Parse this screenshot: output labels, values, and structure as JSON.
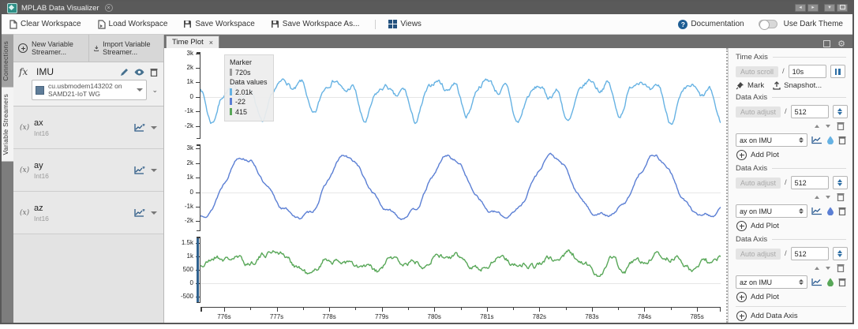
{
  "window": {
    "title": "MPLAB Data Visualizer"
  },
  "toolbar": {
    "clear": "Clear Workspace",
    "load": "Load Workspace",
    "save": "Save Workspace",
    "save_as": "Save Workspace As...",
    "views": "Views",
    "documentation": "Documentation",
    "dark_theme": "Use Dark Theme"
  },
  "sidebar": {
    "tabs": [
      {
        "label": "Connections"
      },
      {
        "label": "Variable Streamers"
      }
    ],
    "new_streamer": "New Variable Streamer...",
    "import_streamer": "Import Variable Streamer...",
    "streamer": {
      "name": "IMU",
      "source": "cu.usbmodem143202 on SAMD21-IoT WG"
    },
    "variables": [
      {
        "name": "ax",
        "type": "Int16"
      },
      {
        "name": "ay",
        "type": "Int16"
      },
      {
        "name": "az",
        "type": "Int16"
      }
    ]
  },
  "plot_panel": {
    "tab": "Time Plot"
  },
  "ui": {
    "separator": "/"
  },
  "settings": {
    "time_axis": {
      "title": "Time Axis",
      "auto_label": "Auto scroll",
      "value": "10s",
      "mark": "Mark",
      "snapshot": "Snapshot..."
    },
    "data_axes": [
      {
        "title": "Data Axis",
        "auto_label": "Auto adjust",
        "value": "512",
        "plot_label": "ax on IMU",
        "add_plot": "Add Plot"
      },
      {
        "title": "Data Axis",
        "auto_label": "Auto adjust",
        "value": "512",
        "plot_label": "ay on IMU",
        "add_plot": "Add Plot"
      },
      {
        "title": "Data Axis",
        "auto_label": "Auto adjust",
        "value": "512",
        "plot_label": "az on IMU",
        "add_plot": "Add Plot"
      }
    ],
    "add_data_axis": "Add Data Axis"
  },
  "chart_data": {
    "type": "line",
    "x_range_s": [
      775.55,
      785.45
    ],
    "x_major_ticks": [
      {
        "label": "776s",
        "t": 776
      },
      {
        "label": "777s",
        "t": 777
      },
      {
        "label": "778s",
        "t": 778
      },
      {
        "label": "779s",
        "t": 779
      },
      {
        "label": "780s",
        "t": 780
      },
      {
        "label": "781s",
        "t": 781
      },
      {
        "label": "782s",
        "t": 782
      },
      {
        "label": "783s",
        "t": 783
      },
      {
        "label": "784s",
        "t": 784
      },
      {
        "label": "785s",
        "t": 785
      }
    ],
    "grid": "zero-line-only",
    "legend_position": "top-left",
    "legend_title": "Data values",
    "marker": {
      "label": "Marker",
      "time": "720s",
      "color": "#9a9a9a"
    },
    "plots": [
      {
        "id": "ax",
        "name": "ax on IMU",
        "color": "#66b2e3",
        "current_value": "2.01k",
        "ylim": [
          -3000,
          3200
        ],
        "y_ticks": [
          {
            "label": "3k",
            "v": 3000
          },
          {
            "label": "2k",
            "v": 2000
          },
          {
            "label": "1k",
            "v": 1000
          },
          {
            "label": "0",
            "v": 0
          },
          {
            "label": "-1k",
            "v": -1000
          },
          {
            "label": "-2k",
            "v": -2000
          }
        ],
        "selected": false,
        "synth": {
          "seed": 7,
          "baseline": 100,
          "noise": 260,
          "components": [
            {
              "p": 0.97,
              "a": 950,
              "ph": 0.0
            },
            {
              "p": 0.485,
              "a": 550,
              "ph": 1.1
            },
            {
              "p": 0.3233,
              "a": 280,
              "ph": 2.0
            },
            {
              "p": 2.9,
              "a": 300,
              "ph": 0.5
            }
          ],
          "events": []
        }
      },
      {
        "id": "ay",
        "name": "ay on IMU",
        "color": "#5b7fd4",
        "current_value": "-22",
        "ylim": [
          -2800,
          3400
        ],
        "y_ticks": [
          {
            "label": "3k",
            "v": 3000
          },
          {
            "label": "2k",
            "v": 2000
          },
          {
            "label": "1k",
            "v": 1000
          },
          {
            "label": "0",
            "v": 0
          },
          {
            "label": "-1k",
            "v": -1000
          },
          {
            "label": "-2k",
            "v": -2000
          }
        ],
        "selected": false,
        "synth": {
          "seed": 13,
          "baseline": 150,
          "noise": 140,
          "components": [
            {
              "p": 1.95,
              "a": 2050,
              "ph": 0.6
            },
            {
              "p": 0.99,
              "a": 300,
              "ph": 0.8
            },
            {
              "p": 0.33,
              "a": 120,
              "ph": 0.0
            }
          ],
          "events": []
        }
      },
      {
        "id": "az",
        "name": "az on IMU",
        "color": "#58a758",
        "current_value": "415",
        "ylim": [
          -800,
          1800
        ],
        "y_ticks": [
          {
            "label": "1.5k",
            "v": 1500
          },
          {
            "label": "1k",
            "v": 1000
          },
          {
            "label": "500",
            "v": 500
          },
          {
            "label": "0",
            "v": 0
          },
          {
            "label": "-500",
            "v": -500
          }
        ],
        "selected": true,
        "synth": {
          "seed": 21,
          "baseline": 830,
          "noise": 160,
          "components": [
            {
              "p": 1.05,
              "a": 110,
              "ph": 1.5
            },
            {
              "p": 0.42,
              "a": 70,
              "ph": 0.3
            },
            {
              "p": 3.7,
              "a": 90,
              "ph": 2.0
            }
          ],
          "events": [
            {
              "t": 776.9,
              "a": 250,
              "w": 0.12
            },
            {
              "t": 777.6,
              "a": -420,
              "w": 0.15
            },
            {
              "t": 778.9,
              "a": -350,
              "w": 0.12
            },
            {
              "t": 780.9,
              "a": -380,
              "w": 0.1
            },
            {
              "t": 782.6,
              "a": 380,
              "w": 0.15
            },
            {
              "t": 783.1,
              "a": -520,
              "w": 0.12
            },
            {
              "t": 783.6,
              "a": -380,
              "w": 0.1
            },
            {
              "t": 784.9,
              "a": -200,
              "w": 0.1
            }
          ]
        }
      }
    ]
  }
}
